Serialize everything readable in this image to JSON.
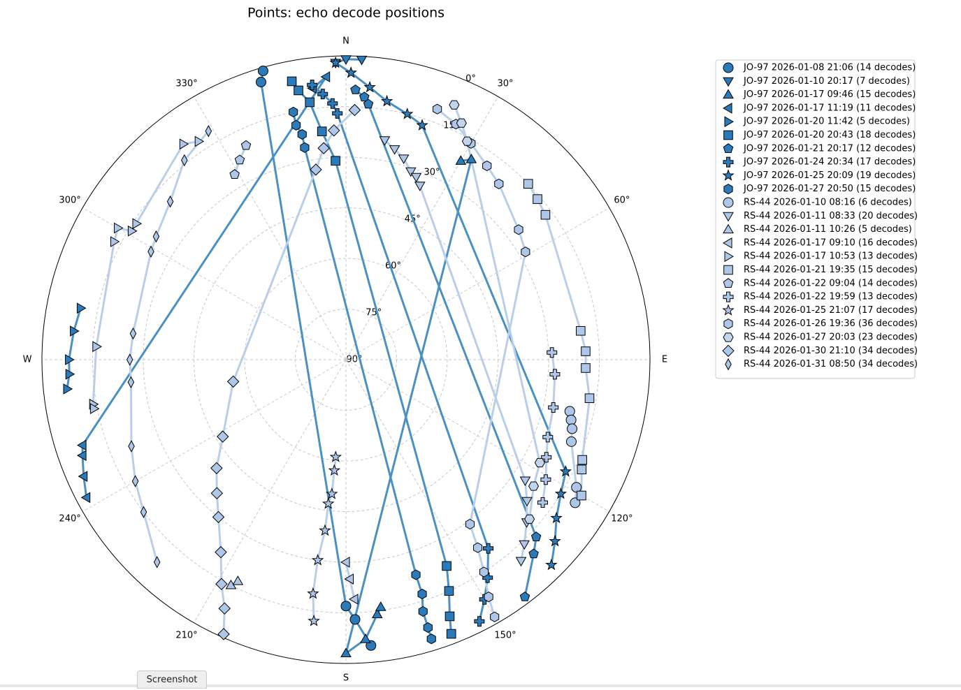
{
  "chart_data": {
    "type": "polar-scatter",
    "subtitle": "Points: echo decode positions",
    "rlim": [
      90,
      0
    ],
    "rticks": [
      {
        "value": 0,
        "label": "0°"
      },
      {
        "value": 15,
        "label": "15°"
      },
      {
        "value": 30,
        "label": "30°"
      },
      {
        "value": 45,
        "label": "45°"
      },
      {
        "value": 60,
        "label": "60°"
      },
      {
        "value": 75,
        "label": "75°"
      },
      {
        "value": 90,
        "label": "90°"
      }
    ],
    "thetaticks": [
      {
        "value": 0,
        "label": "N"
      },
      {
        "value": 30,
        "label": "30°"
      },
      {
        "value": 60,
        "label": "60°"
      },
      {
        "value": 90,
        "label": "E"
      },
      {
        "value": 120,
        "label": "120°"
      },
      {
        "value": 150,
        "label": "150°"
      },
      {
        "value": 180,
        "label": "S"
      },
      {
        "value": 210,
        "label": "210°"
      },
      {
        "value": 240,
        "label": "240°"
      },
      {
        "value": 270,
        "label": "W"
      },
      {
        "value": 300,
        "label": "300°"
      },
      {
        "value": 330,
        "label": "330°"
      }
    ],
    "grid": true,
    "legend": "outside-right",
    "series": [
      {
        "name": "JO-97 2026-01-08 21:06 (14 decodes)",
        "marker": "circle",
        "color": "#2b7bba",
        "line_color": "#4a90c2",
        "azimuth": [
          344,
          343,
          180,
          178,
          175
        ],
        "elevation": [
          1,
          4,
          17,
          13,
          5
        ]
      },
      {
        "name": "JO-97 2026-01-10 20:17 (7 decodes)",
        "marker": "triangle-down",
        "color": "#2b7bba",
        "line_color": "#4a90c2",
        "azimuth": [
          358,
          0,
          3
        ],
        "elevation": [
          2,
          1,
          1
        ]
      },
      {
        "name": "JO-97 2026-01-17 09:46 (15 decodes)",
        "marker": "triangle-up",
        "color": "#2b7bba",
        "line_color": "#4a90c2",
        "azimuth": [
          30,
          32,
          180,
          176,
          173,
          172
        ],
        "elevation": [
          22,
          20,
          3,
          7,
          14,
          16
        ]
      },
      {
        "name": "JO-97 2026-01-17 11:19 (11 decodes)",
        "marker": "triangle-left",
        "color": "#2b7bba",
        "line_color": "#4a90c2",
        "azimuth": [
          353,
          356,
          252,
          250,
          246,
          242
        ],
        "elevation": [
          9,
          6,
          8,
          7,
          5,
          3
        ]
      },
      {
        "name": "JO-97 2026-01-20 11:42 (5 decodes)",
        "marker": "triangle-right",
        "color": "#2b7bba",
        "line_color": "#4a90c2",
        "azimuth": [
          281,
          276,
          270,
          267,
          264
        ],
        "elevation": [
          10,
          9,
          8,
          8,
          7
        ]
      },
      {
        "name": "JO-97 2026-01-20 20:43 (18 decodes)",
        "marker": "square",
        "color": "#2b7bba",
        "line_color": "#4a90c2",
        "azimuth": [
          349,
          350,
          352,
          354,
          357,
          154,
          156,
          158,
          159
        ],
        "elevation": [
          6,
          9,
          13,
          22,
          31,
          22,
          15,
          8,
          3
        ]
      },
      {
        "name": "JO-97 2026-01-21 20:17 (12 decodes)",
        "marker": "pentagon",
        "color": "#2b7bba",
        "line_color": "#4a90c2",
        "azimuth": [
          2,
          4,
          5,
          133,
          136,
          143
        ],
        "elevation": [
          10,
          12,
          14,
          13,
          10,
          2
        ]
      },
      {
        "name": "JO-97 2026-01-24 20:34 (17 decodes)",
        "marker": "plus",
        "color": "#2b7bba",
        "line_color": "#4a90c2",
        "azimuth": [
          353,
          355,
          357,
          358,
          143,
          147,
          150,
          153
        ],
        "elevation": [
          8,
          11,
          14,
          17,
          20,
          13,
          8,
          3
        ]
      },
      {
        "name": "JO-97 2026-01-25 20:09 (19 decodes)",
        "marker": "star",
        "color": "#2b7bba",
        "line_color": "#4a90c2",
        "azimuth": [
          358,
          1,
          5,
          9,
          14,
          18,
          117,
          122,
          127,
          131,
          135
        ],
        "elevation": [
          2,
          5,
          9,
          12.5,
          15,
          17,
          17,
          15,
          12,
          8,
          4
        ]
      },
      {
        "name": "JO-97 2026-01-27 20:50 (15 decodes)",
        "marker": "hexagon",
        "color": "#2b7bba",
        "line_color": "#4a90c2",
        "azimuth": [
          348,
          348,
          349,
          349,
          162,
          162,
          163,
          163,
          163
        ],
        "elevation": [
          15,
          19,
          22,
          26,
          23,
          17,
          12,
          7,
          3.5
        ]
      },
      {
        "name": "RS-44 2026-01-10 08:16 (6 decodes)",
        "marker": "circle",
        "color": "#aec7e8",
        "line_color": "#b9cfe7",
        "azimuth": [
          103,
          105,
          107,
          110,
          119,
          122
        ],
        "elevation": [
          22,
          21,
          20,
          19,
          12,
          10
        ]
      },
      {
        "name": "RS-44 2026-01-11 08:33 (20 decodes)",
        "marker": "triangle-down",
        "color": "#aec7e8",
        "line_color": "#b9cfe7",
        "azimuth": [
          10,
          13,
          16,
          19,
          21,
          23,
          124,
          128,
          132,
          136,
          139
        ],
        "elevation": [
          24,
          26,
          28,
          31,
          32,
          34,
          26,
          22,
          18,
          14,
          11
        ]
      },
      {
        "name": "RS-44 2026-01-11 10:26 (5 decodes)",
        "marker": "triangle-up",
        "color": "#aec7e8",
        "line_color": "#b9cfe7",
        "azimuth": [
          207,
          206
        ],
        "elevation": [
          15,
          17
        ]
      },
      {
        "name": "RS-44 2026-01-17 09:10 (16 decodes)",
        "marker": "triangle-left",
        "color": "#aec7e8",
        "line_color": "#b9cfe7",
        "azimuth": [
          180,
          179,
          178
        ],
        "elevation": [
          30,
          25,
          19
        ]
      },
      {
        "name": "RS-44 2026-01-17 10:53 (13 decodes)",
        "marker": "triangle-right",
        "color": "#aec7e8",
        "line_color": "#b9cfe7",
        "azimuth": [
          326,
          323,
          303,
          301,
          300,
          297,
          273,
          260,
          259
        ],
        "elevation": [
          12,
          10,
          16,
          16,
          12,
          13,
          16,
          14,
          14
        ]
      },
      {
        "name": "RS-44 2026-01-21 19:35 (15 decodes)",
        "marker": "square",
        "color": "#aec7e8",
        "line_color": "#b9cfe7",
        "azimuth": [
          46,
          50,
          54,
          83,
          88,
          92,
          99,
          113,
          115,
          120
        ],
        "elevation": [
          15,
          16,
          17,
          20,
          19,
          19,
          17,
          14,
          13,
          9.5
        ]
      },
      {
        "name": "RS-44 2026-01-22 09:04 (14 decodes)",
        "marker": "pentagon",
        "color": "#aec7e8",
        "line_color": "#b9cfe7",
        "azimuth": [
          329,
          332,
          335
        ],
        "elevation": [
          26,
          23,
          20
        ]
      },
      {
        "name": "RS-44 2026-01-22 19:59 (13 decodes)",
        "marker": "plus",
        "color": "#aec7e8",
        "line_color": "#b9cfe7",
        "azimuth": [
          88,
          94,
          103,
          111,
          116,
          121,
          126
        ],
        "elevation": [
          29,
          28,
          27,
          26,
          24,
          21,
          18
        ]
      },
      {
        "name": "RS-44 2026-01-25 21:07 (17 decodes)",
        "marker": "star",
        "color": "#aec7e8",
        "line_color": "#b9cfe7",
        "azimuth": [
          186,
          186,
          186,
          187,
          187,
          188,
          188,
          187
        ],
        "elevation": [
          61,
          57,
          50,
          47,
          39,
          30,
          20,
          12
        ]
      },
      {
        "name": "RS-44 2026-01-26 19:36 (36 decodes)",
        "marker": "hexagon",
        "color": "#aec7e8",
        "line_color": "#b9cfe7",
        "azimuth": [
          20,
          25,
          30,
          36,
          41,
          53,
          59,
          143,
          145,
          147,
          149,
          150
        ],
        "elevation": [
          11,
          13,
          16,
          19,
          21,
          26,
          28,
          29,
          22,
          15,
          8,
          2
        ]
      },
      {
        "name": "RS-44 2026-01-27 20:03 (23 decodes)",
        "marker": "hexagon2",
        "color": "#c3d5ec",
        "line_color": "#b9cfe7",
        "azimuth": [
          23,
          26,
          29,
          118,
          124,
          131
        ],
        "elevation": [
          8,
          12,
          16,
          25,
          23,
          18
        ]
      },
      {
        "name": "RS-44 2026-01-30 21:10 (34 decodes)",
        "marker": "diamond",
        "color": "#aec7e8",
        "line_color": "#b9cfe7",
        "azimuth": [
          2,
          357,
          354,
          351,
          259,
          238,
          230,
          224,
          219,
          213,
          209,
          206,
          204
        ],
        "elevation": [
          16,
          22,
          27,
          33,
          56,
          47,
          40,
          35,
          30,
          22,
          14,
          8,
          1
        ]
      },
      {
        "name": "RS-44 2026-01-31 08:50 (34 decodes)",
        "marker": "thin-diamond",
        "color": "#aec7e8",
        "line_color": "#b9cfe7",
        "azimuth": [
          329,
          321,
          312,
          303,
          299,
          277,
          270,
          264,
          248,
          240,
          233,
          223
        ],
        "elevation": [
          11,
          14,
          20,
          23,
          24,
          26.5,
          26,
          26,
          21.5,
          18,
          15,
          8
        ]
      }
    ]
  },
  "button": "Screenshot"
}
